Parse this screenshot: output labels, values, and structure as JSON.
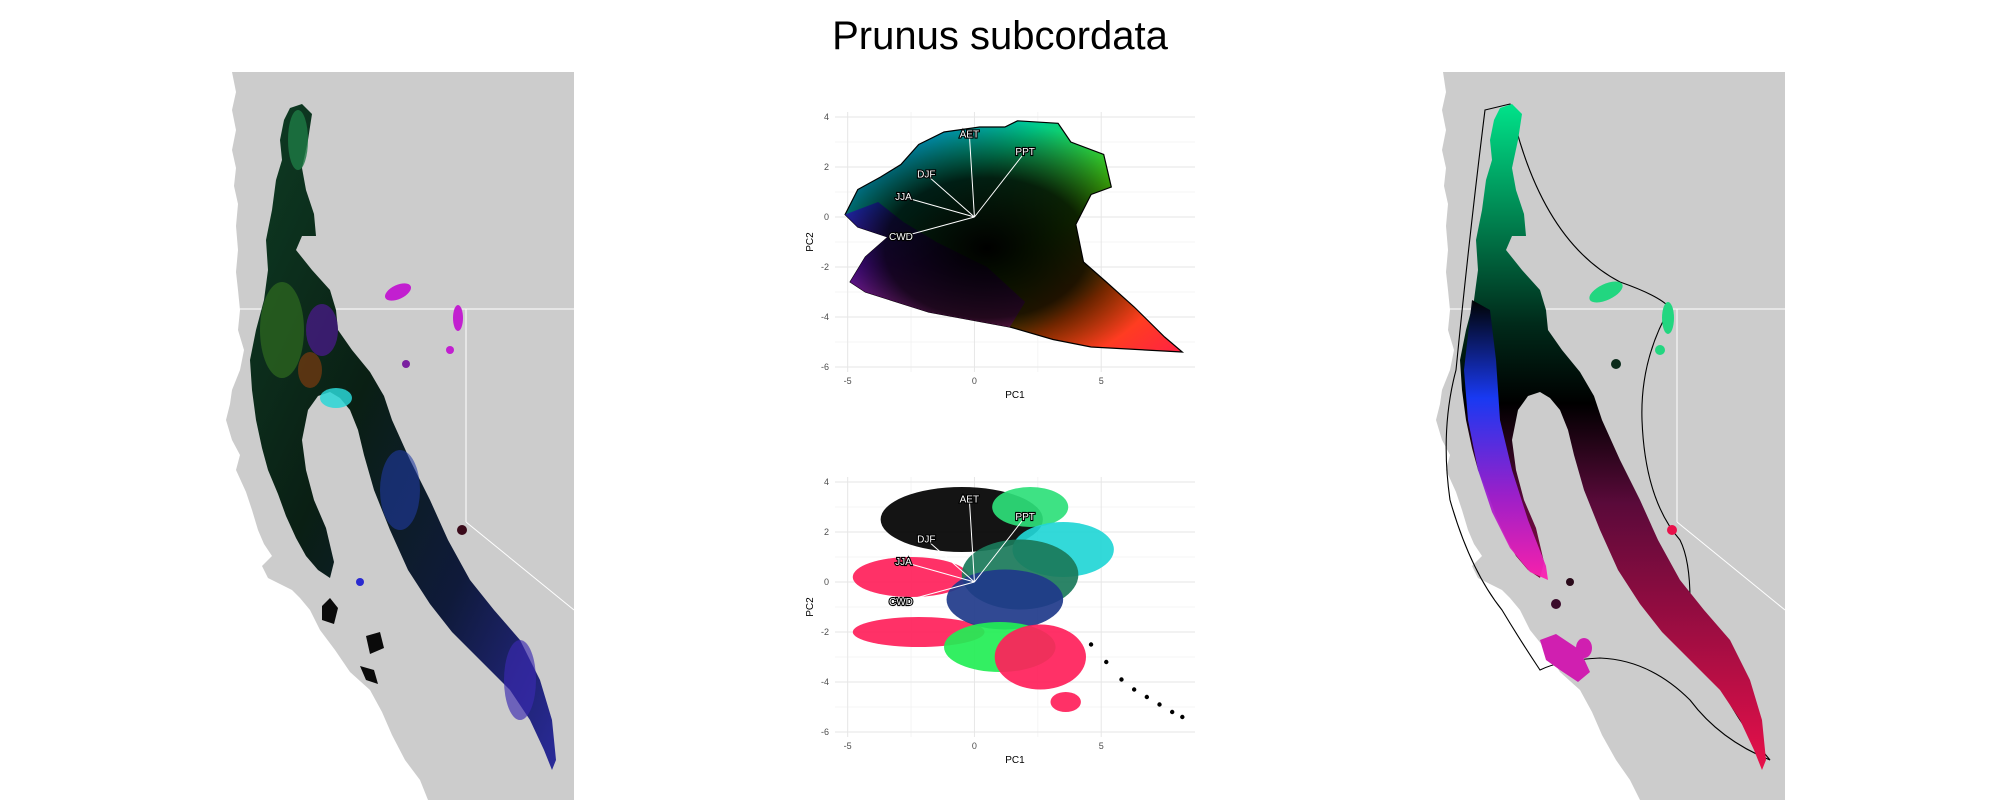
{
  "title": "Prunus subcordata",
  "chart_data": [
    {
      "panel": "left-map",
      "type": "heatmap",
      "description_colors": [
        "#1e6b3c",
        "#0b3d2a",
        "#3a1f6b",
        "#6b2a0b",
        "#1f8a8a",
        "#2a2aa0",
        "#c21fd0"
      ],
      "background": "#cccccc",
      "boundary_color": "#ffffff"
    },
    {
      "panel": "pca-top",
      "type": "scatter",
      "xlabel": "PC1",
      "ylabel": "PC2",
      "x_ticks": [
        -5,
        0,
        5
      ],
      "y_ticks": [
        -6,
        -4,
        -2,
        0,
        2,
        4
      ],
      "xlim": [
        -5.5,
        8.7
      ],
      "ylim": [
        -6.2,
        4.2
      ],
      "grid": true,
      "vectors": [
        {
          "label": "AET",
          "x": -0.2,
          "y": 3.3
        },
        {
          "label": "PPT",
          "x": 2.0,
          "y": 2.6
        },
        {
          "label": "DJF",
          "x": -1.9,
          "y": 1.7
        },
        {
          "label": "JJA",
          "x": -2.8,
          "y": 0.8
        },
        {
          "label": "CWD",
          "x": -2.9,
          "y": -0.8
        }
      ],
      "hull": [
        [
          -5.1,
          0.1
        ],
        [
          -4.6,
          1.1
        ],
        [
          -3.7,
          1.6
        ],
        [
          -2.9,
          2.1
        ],
        [
          -2.2,
          2.9
        ],
        [
          -1.2,
          3.4
        ],
        [
          0.2,
          3.6
        ],
        [
          1.2,
          3.6
        ],
        [
          1.7,
          3.85
        ],
        [
          3.3,
          3.75
        ],
        [
          3.8,
          3.0
        ],
        [
          5.1,
          2.5
        ],
        [
          5.4,
          1.2
        ],
        [
          4.6,
          0.9
        ],
        [
          4.0,
          -0.3
        ],
        [
          4.3,
          -1.8
        ],
        [
          5.2,
          -2.6
        ],
        [
          6.3,
          -3.6
        ],
        [
          7.5,
          -4.8
        ],
        [
          8.2,
          -5.4
        ],
        [
          4.6,
          -5.2
        ],
        [
          3.1,
          -4.9
        ],
        [
          1.4,
          -4.4
        ],
        [
          -1.8,
          -3.8
        ],
        [
          -4.3,
          -3.0
        ],
        [
          -4.9,
          -2.6
        ],
        [
          -4.3,
          -1.6
        ],
        [
          -3.4,
          -0.8
        ],
        [
          -4.6,
          -0.4
        ]
      ],
      "color_regions": [
        "#00ff66",
        "#0044ff",
        "#9900ff",
        "#ff33cc",
        "#ff3300",
        "#000000"
      ]
    },
    {
      "panel": "pca-bottom",
      "type": "scatter",
      "xlabel": "PC1",
      "ylabel": "PC2",
      "x_ticks": [
        -5,
        0,
        5
      ],
      "y_ticks": [
        -6,
        -4,
        -2,
        0,
        2,
        4
      ],
      "xlim": [
        -5.5,
        8.7
      ],
      "ylim": [
        -6.2,
        4.2
      ],
      "grid": true,
      "vectors": [
        {
          "label": "AET",
          "x": -0.2,
          "y": 3.3
        },
        {
          "label": "PPT",
          "x": 2.0,
          "y": 2.6
        },
        {
          "label": "DJF",
          "x": -1.9,
          "y": 1.7
        },
        {
          "label": "JJA",
          "x": -2.8,
          "y": 0.8
        },
        {
          "label": "CWD",
          "x": -2.9,
          "y": -0.8
        }
      ],
      "clusters": [
        {
          "color": "#000000",
          "cx": -0.5,
          "cy": 2.5,
          "rx": 3.2,
          "ry": 1.3
        },
        {
          "color": "#ff1f5a",
          "cx": -2.5,
          "cy": 0.2,
          "rx": 2.3,
          "ry": 0.8
        },
        {
          "color": "#ff1f5a",
          "cx": -2.2,
          "cy": -2.0,
          "rx": 2.6,
          "ry": 0.6
        },
        {
          "color": "#2ee07a",
          "cx": 2.2,
          "cy": 3.0,
          "rx": 1.5,
          "ry": 0.8
        },
        {
          "color": "#22d6d6",
          "cx": 3.5,
          "cy": 1.3,
          "rx": 2.0,
          "ry": 1.1
        },
        {
          "color": "#1a7a5a",
          "cx": 1.8,
          "cy": 0.3,
          "rx": 2.3,
          "ry": 1.4
        },
        {
          "color": "#1f3a8a",
          "cx": 1.2,
          "cy": -0.7,
          "rx": 2.3,
          "ry": 1.2
        },
        {
          "color": "#22ee55",
          "cx": 1.0,
          "cy": -2.6,
          "rx": 2.2,
          "ry": 1.0
        },
        {
          "color": "#ff1f5a",
          "cx": 2.6,
          "cy": -3.0,
          "rx": 1.8,
          "ry": 1.3
        },
        {
          "color": "#ff1f5a",
          "cx": 3.6,
          "cy": -4.8,
          "rx": 0.6,
          "ry": 0.4
        }
      ],
      "tail": [
        [
          4.6,
          -2.5
        ],
        [
          5.2,
          -3.2
        ],
        [
          5.8,
          -3.9
        ],
        [
          6.3,
          -4.3
        ],
        [
          6.8,
          -4.6
        ],
        [
          7.3,
          -4.9
        ],
        [
          7.8,
          -5.2
        ],
        [
          8.2,
          -5.4
        ]
      ]
    },
    {
      "panel": "right-map",
      "type": "heatmap",
      "description_colors": [
        "#00e38a",
        "#000000",
        "#1a3cff",
        "#c21fd0",
        "#e8104a"
      ],
      "background": "#cccccc",
      "boundary_color": "#ffffff"
    }
  ]
}
